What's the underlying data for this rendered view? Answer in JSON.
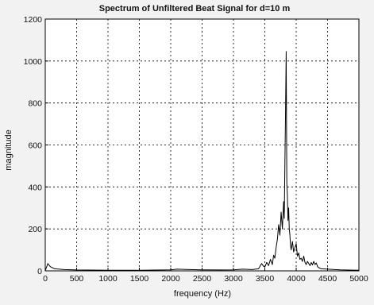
{
  "chart_data": {
    "type": "line",
    "title": "Spectrum of Unfiltered Beat Signal for d=10 m",
    "xlabel": "frequency (Hz)",
    "ylabel": "magnitude",
    "xlim": [
      0,
      5000
    ],
    "ylim": [
      0,
      1200
    ],
    "xticks": [
      0,
      500,
      1000,
      1500,
      2000,
      2500,
      3000,
      3500,
      4000,
      4500,
      5000
    ],
    "yticks": [
      0,
      200,
      400,
      600,
      800,
      1000,
      1200
    ],
    "grid": true,
    "grid_style": "dotted",
    "line_color": "#000000",
    "background": "#ffffff",
    "series": [
      {
        "x": [
          0,
          40,
          80,
          150,
          300,
          500,
          1000,
          1500,
          2000,
          2100,
          2300,
          2500,
          2800,
          3000,
          3150,
          3300,
          3400,
          3450,
          3480,
          3500,
          3530,
          3560,
          3590,
          3620,
          3640,
          3660,
          3680,
          3700,
          3720,
          3740,
          3760,
          3780,
          3800,
          3810,
          3820,
          3830,
          3840,
          3850,
          3860,
          3870,
          3880,
          3890,
          3900,
          3910,
          3920,
          3940,
          3960,
          3980,
          4000,
          4020,
          4040,
          4060,
          4080,
          4100,
          4120,
          4140,
          4160,
          4180,
          4200,
          4220,
          4240,
          4260,
          4280,
          4300,
          4320,
          4340,
          4360,
          4400,
          4500,
          4700,
          5000
        ],
        "y": [
          0,
          35,
          20,
          10,
          6,
          4,
          3,
          3,
          5,
          8,
          6,
          5,
          4,
          5,
          8,
          6,
          10,
          35,
          22,
          18,
          40,
          25,
          55,
          30,
          75,
          60,
          110,
          150,
          220,
          170,
          280,
          200,
          330,
          250,
          520,
          760,
          1045,
          420,
          360,
          240,
          300,
          200,
          170,
          120,
          100,
          140,
          90,
          110,
          130,
          70,
          85,
          55,
          60,
          45,
          70,
          40,
          30,
          45,
          35,
          25,
          40,
          28,
          45,
          30,
          38,
          20,
          15,
          10,
          8,
          5,
          3
        ]
      }
    ]
  }
}
